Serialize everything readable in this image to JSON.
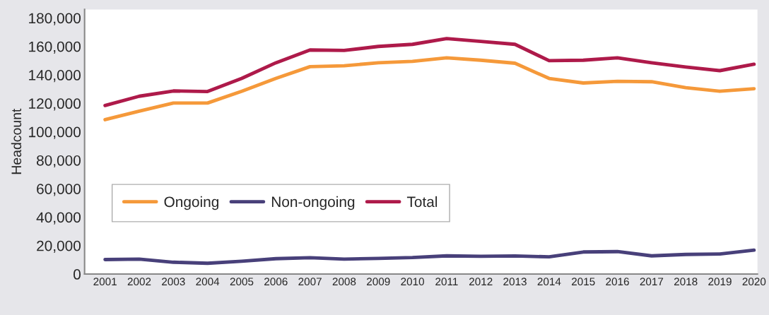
{
  "chart_data": {
    "type": "line",
    "ylabel": "Headcount",
    "categories": [
      "2001",
      "2002",
      "2003",
      "2004",
      "2005",
      "2006",
      "2007",
      "2008",
      "2009",
      "2010",
      "2011",
      "2012",
      "2013",
      "2014",
      "2015",
      "2016",
      "2017",
      "2018",
      "2019",
      "2020"
    ],
    "series": [
      {
        "name": "Ongoing",
        "color": "#f5993a",
        "values": [
          108500,
          114500,
          120200,
          120200,
          128500,
          137500,
          145800,
          146400,
          148500,
          149500,
          152000,
          150300,
          148200,
          137500,
          134300,
          135500,
          135200,
          131000,
          128500,
          130300
        ]
      },
      {
        "name": "Non-ongoing",
        "color": "#48407a",
        "values": [
          10200,
          10500,
          8300,
          7600,
          9000,
          10800,
          11500,
          10500,
          11000,
          11600,
          12800,
          12500,
          12700,
          12100,
          15500,
          15800,
          12800,
          13800,
          14100,
          16800
        ]
      },
      {
        "name": "Total",
        "color": "#ae1a4a",
        "values": [
          118500,
          125000,
          128700,
          128300,
          137500,
          148500,
          157500,
          157200,
          160000,
          161500,
          165500,
          163500,
          161500,
          150000,
          150300,
          152000,
          148500,
          145500,
          143000,
          147500
        ]
      }
    ],
    "ylim": [
      0,
      186000
    ],
    "yticks": [
      {
        "value": 0,
        "label": "0"
      },
      {
        "value": 20000,
        "label": "20,000"
      },
      {
        "value": 40000,
        "label": "40,000"
      },
      {
        "value": 60000,
        "label": "60,000"
      },
      {
        "value": 80000,
        "label": "80,000"
      },
      {
        "value": 100000,
        "label": "100,000"
      },
      {
        "value": 120000,
        "label": "120,000"
      },
      {
        "value": 140000,
        "label": "140,000"
      },
      {
        "value": 160000,
        "label": "160,000"
      },
      {
        "value": 180000,
        "label": "180,000"
      }
    ],
    "grid": false,
    "legend": "bottom left",
    "marker": "none",
    "line_style": "solid"
  }
}
